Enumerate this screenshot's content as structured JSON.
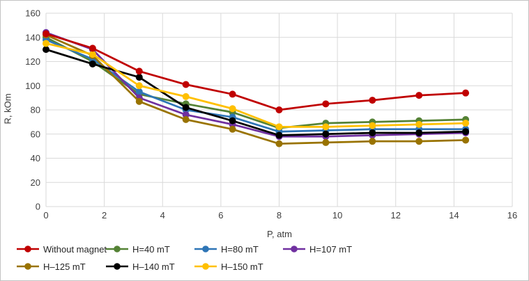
{
  "chart_data": {
    "type": "line",
    "title": "",
    "xlabel": "P, atm",
    "ylabel": "R, kOm",
    "xlim": [
      0,
      16
    ],
    "ylim": [
      0,
      160
    ],
    "x_ticks": [
      0,
      2,
      4,
      6,
      8,
      10,
      12,
      14,
      16
    ],
    "y_ticks": [
      0,
      20,
      40,
      60,
      80,
      100,
      120,
      140,
      160
    ],
    "grid": true,
    "gridline_color": "#d9d9d9",
    "legend_position": "bottom",
    "marker_style": "filled-circle",
    "x": [
      0,
      1.6,
      3.2,
      4.8,
      6.4,
      8,
      9.6,
      11.2,
      12.8,
      14.4
    ],
    "series": [
      {
        "name": "Without magnet",
        "color": "#c00000",
        "values": [
          143,
          131,
          112,
          101,
          93,
          80,
          85,
          88,
          92,
          94
        ]
      },
      {
        "name": "H=40 mT",
        "color": "#548235",
        "values": [
          140,
          120,
          93,
          85,
          78,
          65,
          69,
          70,
          71,
          72
        ]
      },
      {
        "name": "H=80 mT",
        "color": "#2e75b6",
        "values": [
          138,
          122,
          95,
          80,
          74,
          62,
          63,
          64,
          64,
          64
        ]
      },
      {
        "name": "H=107 mT",
        "color": "#7030a0",
        "values": [
          144,
          130,
          90,
          76,
          68,
          58,
          58,
          59,
          60,
          61
        ]
      },
      {
        "name": "H–125 mT",
        "color": "#997300",
        "values": [
          142,
          125,
          87,
          72,
          64,
          52,
          53,
          54,
          54,
          55
        ]
      },
      {
        "name": "H–140 mT",
        "color": "#000000",
        "values": [
          130,
          118,
          107,
          82,
          71,
          59,
          60,
          61,
          61,
          62
        ]
      },
      {
        "name": "H–150 mT",
        "color": "#ffc000",
        "values": [
          135,
          126,
          100,
          91,
          81,
          66,
          66,
          67,
          68,
          69
        ]
      }
    ]
  }
}
